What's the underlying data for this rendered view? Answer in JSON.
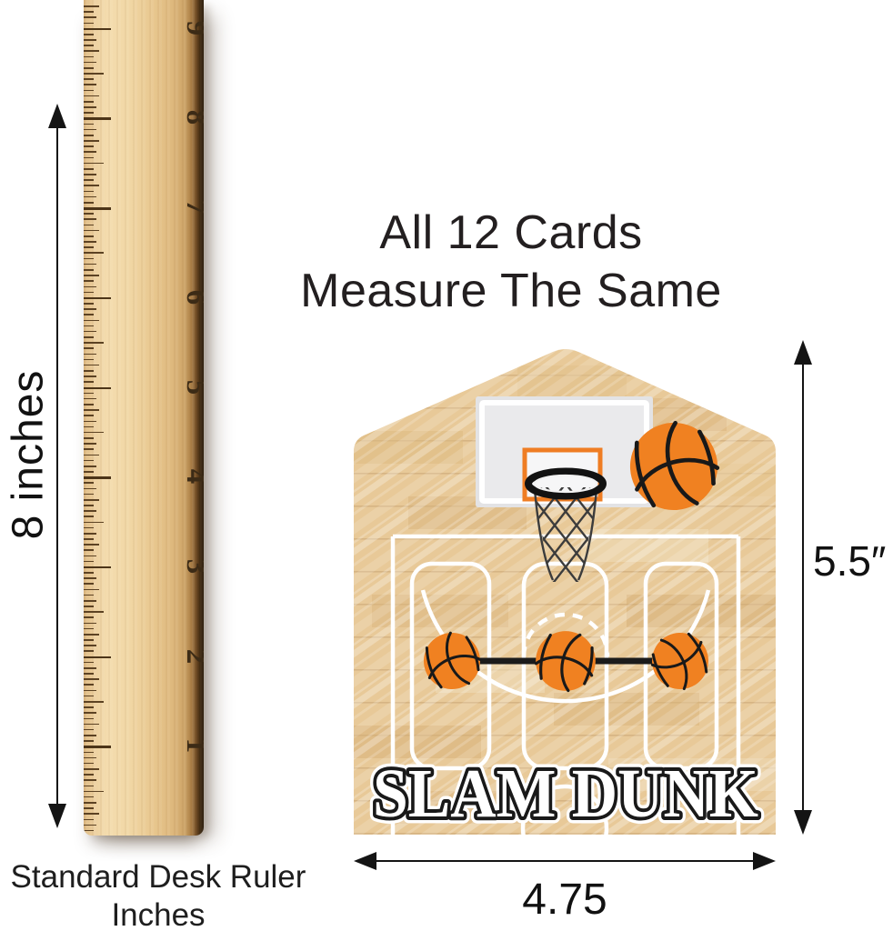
{
  "heading": {
    "line1": "All 12 Cards",
    "line2": "Measure The Same"
  },
  "ruler": {
    "numbers": [
      "9",
      "8",
      "7",
      "6",
      "5",
      "4",
      "3",
      "2",
      "1"
    ],
    "height_label": "8 inches",
    "caption_line1": "Standard Desk Ruler",
    "caption_line2": "Inches"
  },
  "card": {
    "title": "SLAM DUNK",
    "height_label": "5.5″",
    "width_label": "4.75"
  },
  "colors": {
    "basketball_orange": "#f08121",
    "wood_light": "#e8c998",
    "court_line_white": "#ffffff",
    "annotation_black": "#141414"
  }
}
